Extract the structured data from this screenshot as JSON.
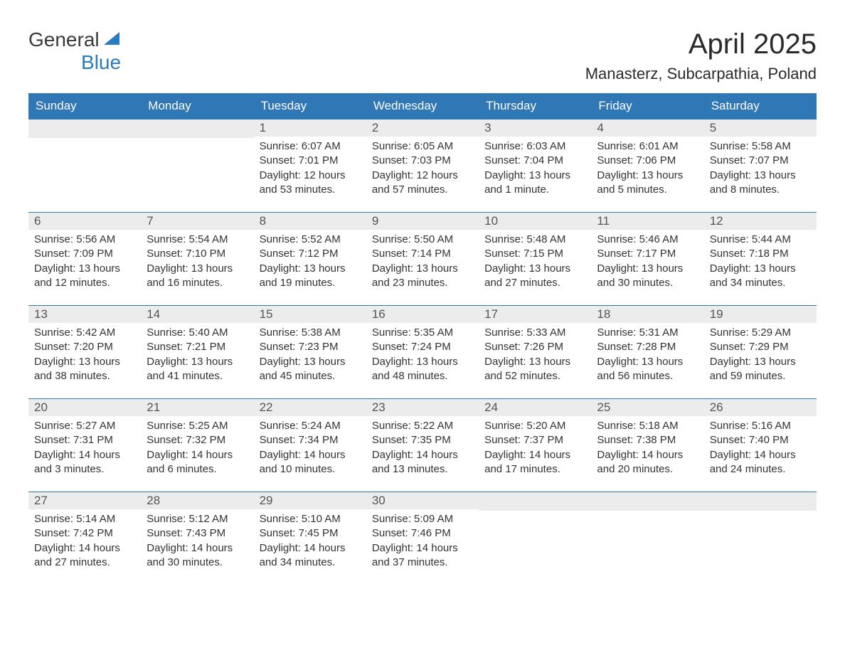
{
  "logo": {
    "text1": "General",
    "text2": "Blue",
    "color1": "#3a3a3a",
    "color2": "#2b7bbf",
    "icon_color": "#2b7bbf"
  },
  "title": "April 2025",
  "location": "Manasterz, Subcarpathia, Poland",
  "colors": {
    "header_bg": "#3077b5",
    "header_text": "#ffffff",
    "daynum_bg": "#ececec",
    "daynum_text": "#555555",
    "border": "#3077b5",
    "body_text": "#333333",
    "background": "#ffffff"
  },
  "typography": {
    "title_fontsize": 40,
    "location_fontsize": 22,
    "weekday_fontsize": 17,
    "daynum_fontsize": 17,
    "content_fontsize": 15
  },
  "weekdays": [
    "Sunday",
    "Monday",
    "Tuesday",
    "Wednesday",
    "Thursday",
    "Friday",
    "Saturday"
  ],
  "weeks": [
    [
      {
        "empty": true
      },
      {
        "empty": true
      },
      {
        "num": "1",
        "sunrise": "Sunrise: 6:07 AM",
        "sunset": "Sunset: 7:01 PM",
        "daylight": "Daylight: 12 hours and 53 minutes."
      },
      {
        "num": "2",
        "sunrise": "Sunrise: 6:05 AM",
        "sunset": "Sunset: 7:03 PM",
        "daylight": "Daylight: 12 hours and 57 minutes."
      },
      {
        "num": "3",
        "sunrise": "Sunrise: 6:03 AM",
        "sunset": "Sunset: 7:04 PM",
        "daylight": "Daylight: 13 hours and 1 minute."
      },
      {
        "num": "4",
        "sunrise": "Sunrise: 6:01 AM",
        "sunset": "Sunset: 7:06 PM",
        "daylight": "Daylight: 13 hours and 5 minutes."
      },
      {
        "num": "5",
        "sunrise": "Sunrise: 5:58 AM",
        "sunset": "Sunset: 7:07 PM",
        "daylight": "Daylight: 13 hours and 8 minutes."
      }
    ],
    [
      {
        "num": "6",
        "sunrise": "Sunrise: 5:56 AM",
        "sunset": "Sunset: 7:09 PM",
        "daylight": "Daylight: 13 hours and 12 minutes."
      },
      {
        "num": "7",
        "sunrise": "Sunrise: 5:54 AM",
        "sunset": "Sunset: 7:10 PM",
        "daylight": "Daylight: 13 hours and 16 minutes."
      },
      {
        "num": "8",
        "sunrise": "Sunrise: 5:52 AM",
        "sunset": "Sunset: 7:12 PM",
        "daylight": "Daylight: 13 hours and 19 minutes."
      },
      {
        "num": "9",
        "sunrise": "Sunrise: 5:50 AM",
        "sunset": "Sunset: 7:14 PM",
        "daylight": "Daylight: 13 hours and 23 minutes."
      },
      {
        "num": "10",
        "sunrise": "Sunrise: 5:48 AM",
        "sunset": "Sunset: 7:15 PM",
        "daylight": "Daylight: 13 hours and 27 minutes."
      },
      {
        "num": "11",
        "sunrise": "Sunrise: 5:46 AM",
        "sunset": "Sunset: 7:17 PM",
        "daylight": "Daylight: 13 hours and 30 minutes."
      },
      {
        "num": "12",
        "sunrise": "Sunrise: 5:44 AM",
        "sunset": "Sunset: 7:18 PM",
        "daylight": "Daylight: 13 hours and 34 minutes."
      }
    ],
    [
      {
        "num": "13",
        "sunrise": "Sunrise: 5:42 AM",
        "sunset": "Sunset: 7:20 PM",
        "daylight": "Daylight: 13 hours and 38 minutes."
      },
      {
        "num": "14",
        "sunrise": "Sunrise: 5:40 AM",
        "sunset": "Sunset: 7:21 PM",
        "daylight": "Daylight: 13 hours and 41 minutes."
      },
      {
        "num": "15",
        "sunrise": "Sunrise: 5:38 AM",
        "sunset": "Sunset: 7:23 PM",
        "daylight": "Daylight: 13 hours and 45 minutes."
      },
      {
        "num": "16",
        "sunrise": "Sunrise: 5:35 AM",
        "sunset": "Sunset: 7:24 PM",
        "daylight": "Daylight: 13 hours and 48 minutes."
      },
      {
        "num": "17",
        "sunrise": "Sunrise: 5:33 AM",
        "sunset": "Sunset: 7:26 PM",
        "daylight": "Daylight: 13 hours and 52 minutes."
      },
      {
        "num": "18",
        "sunrise": "Sunrise: 5:31 AM",
        "sunset": "Sunset: 7:28 PM",
        "daylight": "Daylight: 13 hours and 56 minutes."
      },
      {
        "num": "19",
        "sunrise": "Sunrise: 5:29 AM",
        "sunset": "Sunset: 7:29 PM",
        "daylight": "Daylight: 13 hours and 59 minutes."
      }
    ],
    [
      {
        "num": "20",
        "sunrise": "Sunrise: 5:27 AM",
        "sunset": "Sunset: 7:31 PM",
        "daylight": "Daylight: 14 hours and 3 minutes."
      },
      {
        "num": "21",
        "sunrise": "Sunrise: 5:25 AM",
        "sunset": "Sunset: 7:32 PM",
        "daylight": "Daylight: 14 hours and 6 minutes."
      },
      {
        "num": "22",
        "sunrise": "Sunrise: 5:24 AM",
        "sunset": "Sunset: 7:34 PM",
        "daylight": "Daylight: 14 hours and 10 minutes."
      },
      {
        "num": "23",
        "sunrise": "Sunrise: 5:22 AM",
        "sunset": "Sunset: 7:35 PM",
        "daylight": "Daylight: 14 hours and 13 minutes."
      },
      {
        "num": "24",
        "sunrise": "Sunrise: 5:20 AM",
        "sunset": "Sunset: 7:37 PM",
        "daylight": "Daylight: 14 hours and 17 minutes."
      },
      {
        "num": "25",
        "sunrise": "Sunrise: 5:18 AM",
        "sunset": "Sunset: 7:38 PM",
        "daylight": "Daylight: 14 hours and 20 minutes."
      },
      {
        "num": "26",
        "sunrise": "Sunrise: 5:16 AM",
        "sunset": "Sunset: 7:40 PM",
        "daylight": "Daylight: 14 hours and 24 minutes."
      }
    ],
    [
      {
        "num": "27",
        "sunrise": "Sunrise: 5:14 AM",
        "sunset": "Sunset: 7:42 PM",
        "daylight": "Daylight: 14 hours and 27 minutes."
      },
      {
        "num": "28",
        "sunrise": "Sunrise: 5:12 AM",
        "sunset": "Sunset: 7:43 PM",
        "daylight": "Daylight: 14 hours and 30 minutes."
      },
      {
        "num": "29",
        "sunrise": "Sunrise: 5:10 AM",
        "sunset": "Sunset: 7:45 PM",
        "daylight": "Daylight: 14 hours and 34 minutes."
      },
      {
        "num": "30",
        "sunrise": "Sunrise: 5:09 AM",
        "sunset": "Sunset: 7:46 PM",
        "daylight": "Daylight: 14 hours and 37 minutes."
      },
      {
        "empty": true
      },
      {
        "empty": true
      },
      {
        "empty": true
      }
    ]
  ]
}
